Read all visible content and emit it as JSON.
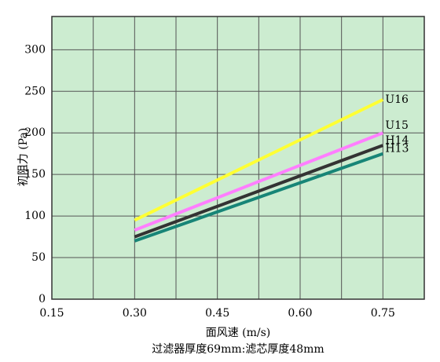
{
  "chart_data": {
    "type": "line",
    "y_label": "初阻力 (Pa)",
    "x_label": "面风速 (m/s)",
    "subtitle": "过滤器厚度69mm:滤芯厚度48mm",
    "x": [
      0.3,
      0.75
    ],
    "series": [
      {
        "name": "U16",
        "color": "#ffff33",
        "values": [
          95,
          240
        ]
      },
      {
        "name": "U15",
        "color": "#ff7fff",
        "values": [
          83,
          200
        ]
      },
      {
        "name": "H14",
        "color": "#333333",
        "values": [
          75,
          185
        ]
      },
      {
        "name": "H13",
        "color": "#178577",
        "values": [
          70,
          175
        ]
      }
    ],
    "xlim": [
      0.15,
      0.825
    ],
    "xticks": [
      {
        "value": 0.15,
        "label": "0.15"
      },
      {
        "value": 0.3,
        "label": "0.30"
      },
      {
        "value": 0.45,
        "label": "0.45"
      },
      {
        "value": 0.6,
        "label": "0.60"
      },
      {
        "value": 0.75,
        "label": "0.75"
      }
    ],
    "x_minor_grid": [
      0.225,
      0.375,
      0.525,
      0.675
    ],
    "ylim": [
      0,
      340
    ],
    "yticks": [
      0,
      50,
      100,
      150,
      200,
      250,
      300
    ],
    "grid": true,
    "background": "#ccecd0"
  }
}
